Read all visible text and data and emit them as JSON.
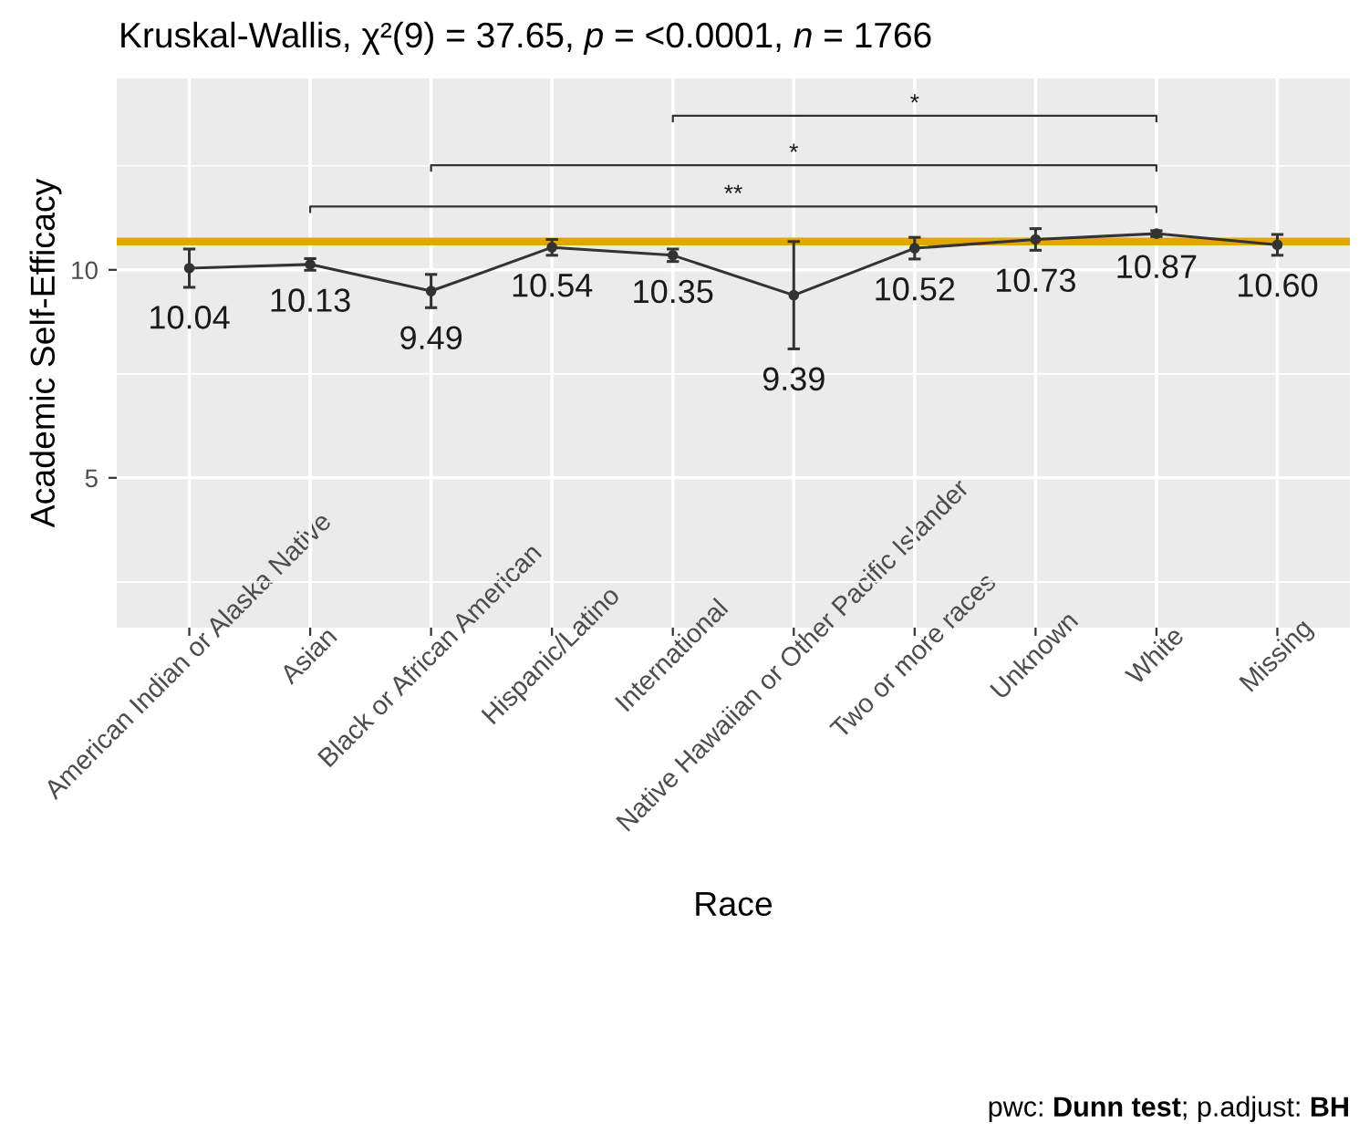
{
  "chart_data": {
    "type": "line",
    "title": "Kruskal-Wallis, χ²(9) = 37.65, p = <0.0001, n = 1766",
    "xlabel": "Race",
    "ylabel": "Academic Self-Efficacy",
    "categories": [
      "American Indian or Alaska Native",
      "Asian",
      "Black or African American",
      "Hispanic/Latino",
      "International",
      "Native Hawaiian or Other Pacific Islander",
      "Two or more races",
      "Unknown",
      "White",
      "Missing"
    ],
    "series": [
      {
        "color": "#333333",
        "values": [
          10.04,
          10.13,
          9.49,
          10.54,
          10.35,
          9.39,
          10.52,
          10.73,
          10.87,
          10.6
        ],
        "errors": [
          0.46,
          0.14,
          0.4,
          0.19,
          0.15,
          1.29,
          0.26,
          0.26,
          0.07,
          0.25
        ],
        "value_labels": [
          "10.04",
          "10.13",
          "9.49",
          "10.54",
          "10.35",
          "9.39",
          "10.52",
          "10.73",
          "10.87",
          "10.60"
        ]
      }
    ],
    "ylim": [
      1.4,
      14.6
    ],
    "yticks": [
      5,
      10
    ],
    "grid": true,
    "marker": "circle",
    "line_style": "solid",
    "ref_lines": [
      {
        "axis": "y",
        "value": 10.68,
        "color": "#e3a600"
      }
    ],
    "annotations": [
      "*",
      "*",
      "**",
      "pwc: Dunn test; p.adjust: BH"
    ]
  }
}
